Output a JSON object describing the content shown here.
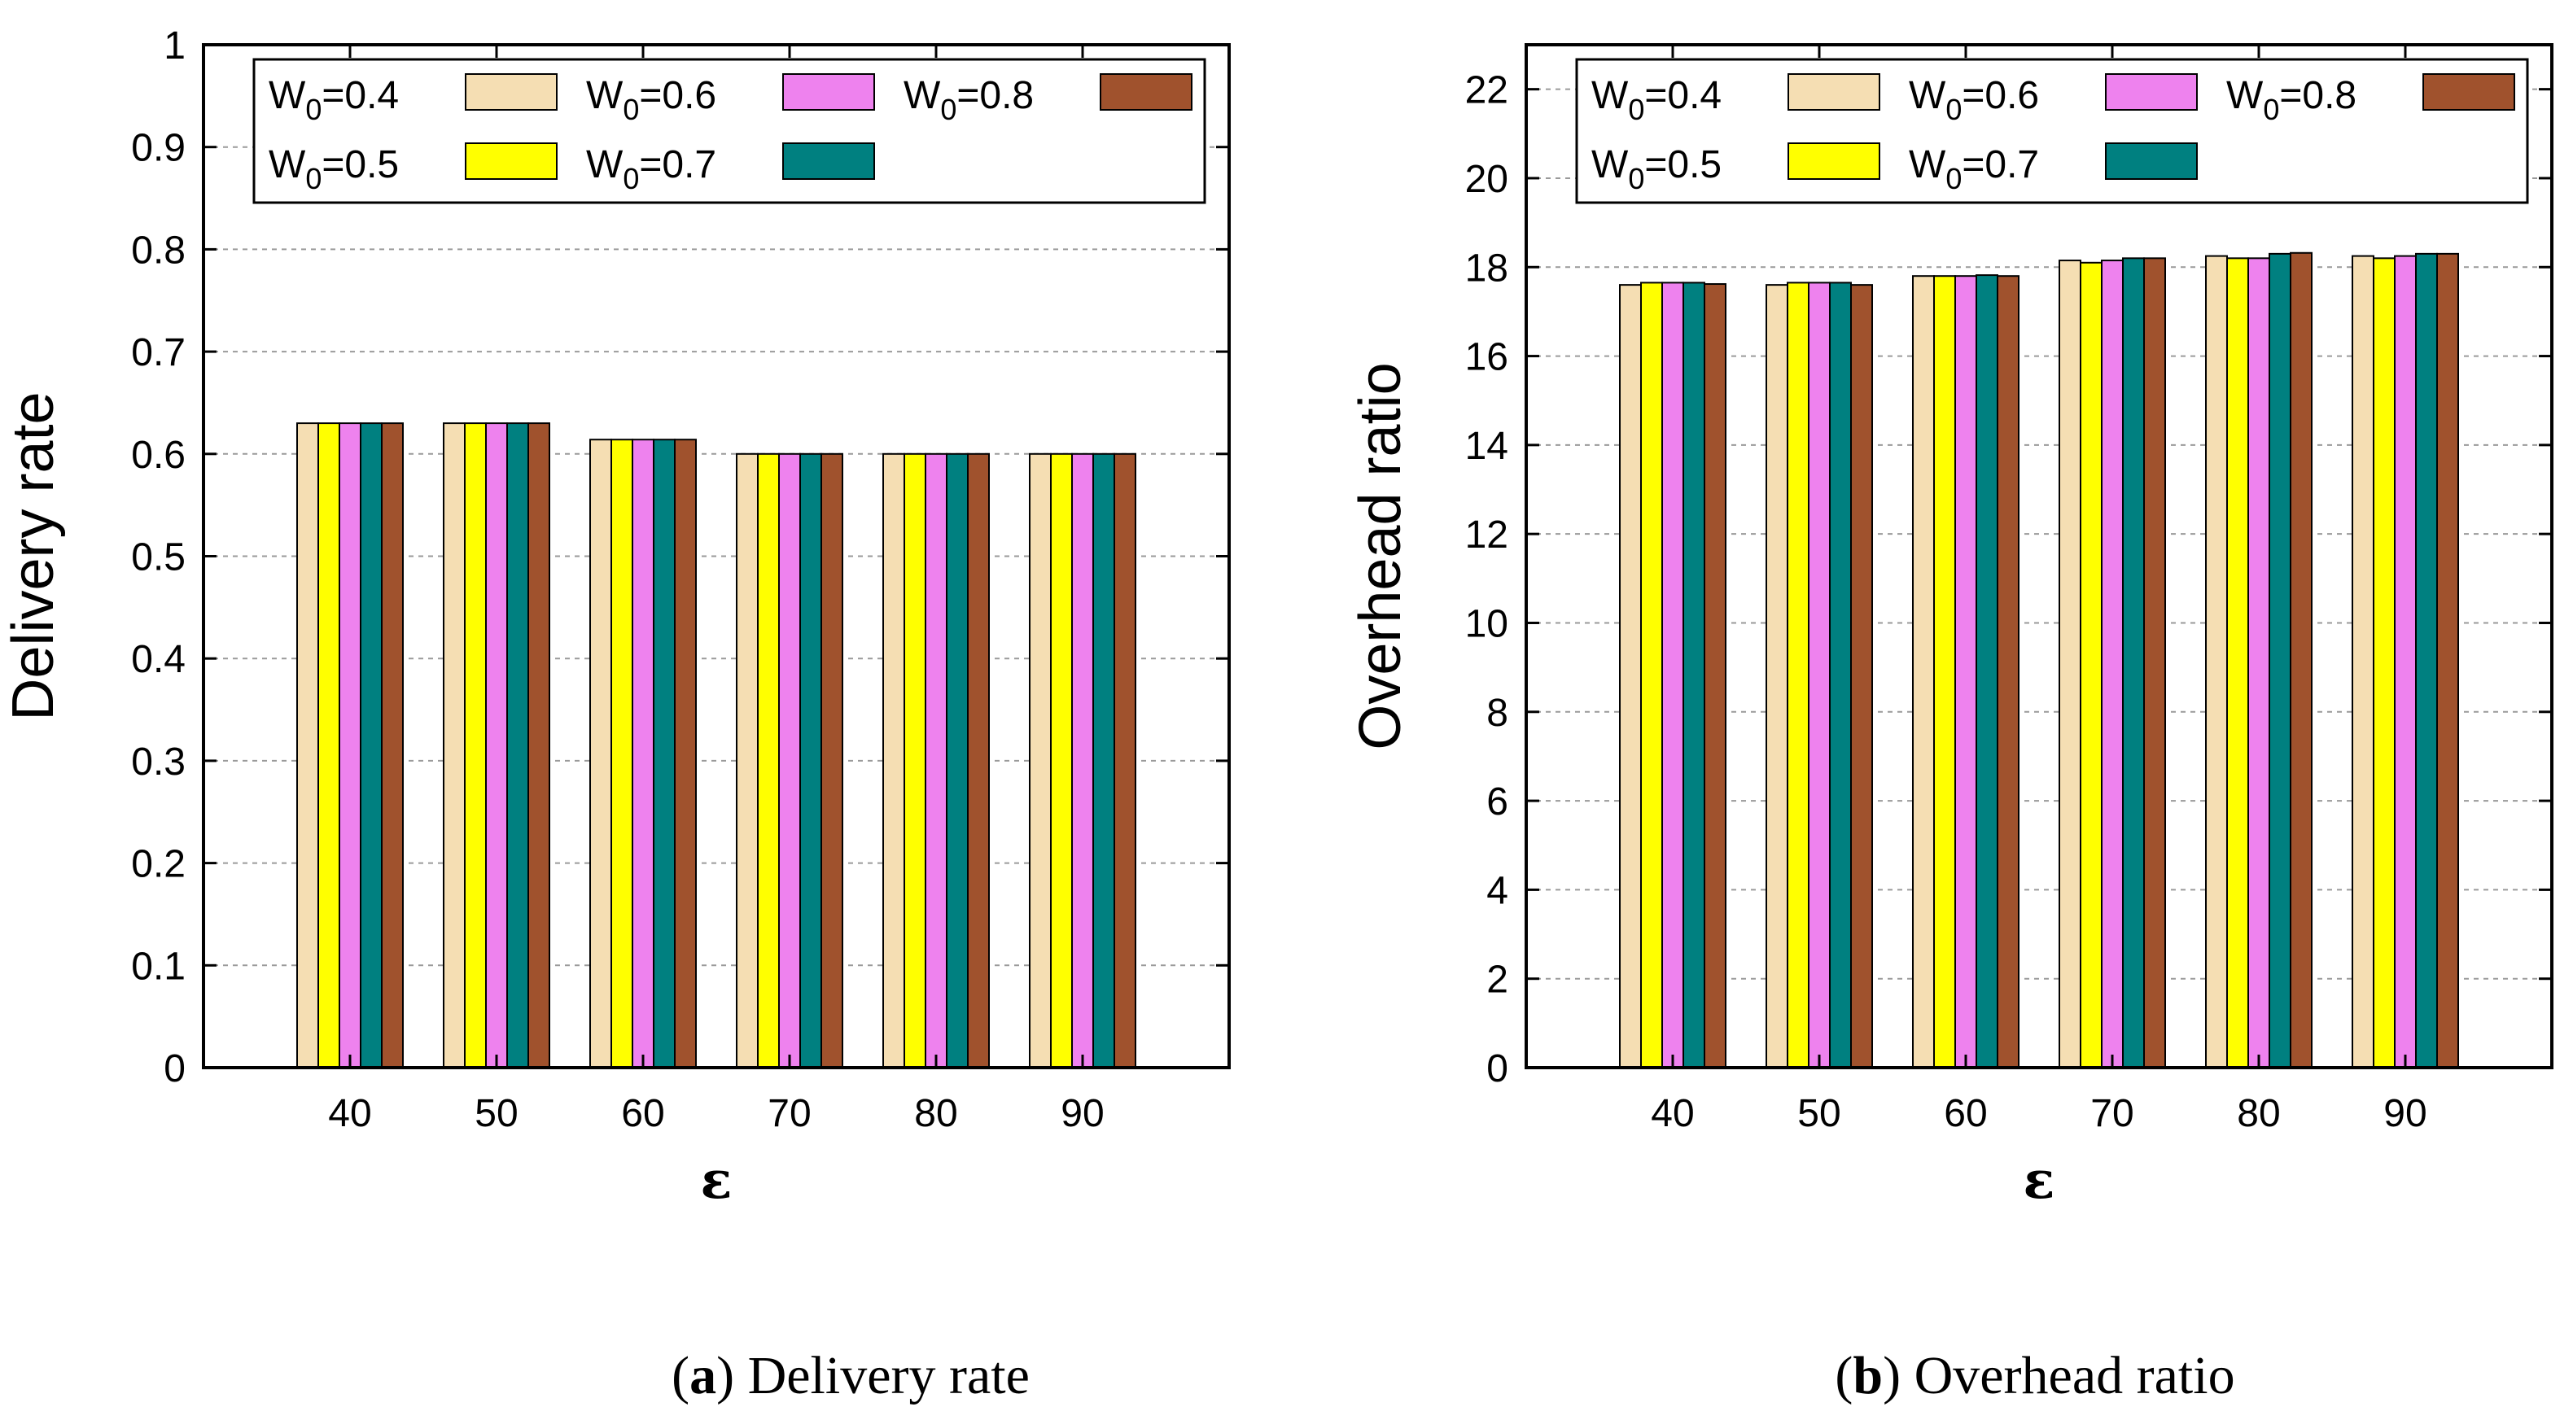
{
  "chart_data": [
    {
      "type": "bar",
      "panel": "a",
      "caption_label": "a",
      "caption_text": "Delivery rate",
      "ylabel": "Delivery rate",
      "xlabel": "ε",
      "ylim": [
        0,
        1
      ],
      "yticks": [
        "0",
        "0.1",
        "0.2",
        "0.3",
        "0.4",
        "0.5",
        "0.6",
        "0.7",
        "0.8",
        "0.9",
        "1"
      ],
      "categories": [
        "40",
        "50",
        "60",
        "70",
        "80",
        "90"
      ],
      "grid": true,
      "legend_position": "top-left",
      "series": [
        {
          "name": "W0=0.4",
          "values": [
            0.63,
            0.63,
            0.614,
            0.6,
            0.6,
            0.6
          ]
        },
        {
          "name": "W0=0.5",
          "values": [
            0.63,
            0.63,
            0.614,
            0.6,
            0.6,
            0.6
          ]
        },
        {
          "name": "W0=0.6",
          "values": [
            0.63,
            0.63,
            0.614,
            0.6,
            0.6,
            0.6
          ]
        },
        {
          "name": "W0=0.7",
          "values": [
            0.63,
            0.63,
            0.614,
            0.6,
            0.6,
            0.6
          ]
        },
        {
          "name": "W0=0.8",
          "values": [
            0.63,
            0.63,
            0.614,
            0.6,
            0.6,
            0.6
          ]
        }
      ]
    },
    {
      "type": "bar",
      "panel": "b",
      "caption_label": "b",
      "caption_text": "Overhead ratio",
      "ylabel": "Overhead ratio",
      "xlabel": "ε",
      "ylim": [
        0,
        23
      ],
      "yticks": [
        "0",
        "2",
        "4",
        "6",
        "8",
        "10",
        "12",
        "14",
        "16",
        "18",
        "20",
        "22"
      ],
      "categories": [
        "40",
        "50",
        "60",
        "70",
        "80",
        "90"
      ],
      "grid": true,
      "legend_position": "top-left",
      "series": [
        {
          "name": "W0=0.4",
          "values": [
            17.6,
            17.6,
            17.8,
            18.15,
            18.25,
            18.25
          ]
        },
        {
          "name": "W0=0.5",
          "values": [
            17.65,
            17.65,
            17.8,
            18.1,
            18.2,
            18.2
          ]
        },
        {
          "name": "W0=0.6",
          "values": [
            17.65,
            17.65,
            17.8,
            18.15,
            18.2,
            18.25
          ]
        },
        {
          "name": "W0=0.7",
          "values": [
            17.65,
            17.65,
            17.82,
            18.2,
            18.3,
            18.3
          ]
        },
        {
          "name": "W0=0.8",
          "values": [
            17.62,
            17.6,
            17.8,
            18.2,
            18.32,
            18.3
          ]
        }
      ]
    }
  ],
  "legend": {
    "series_labels": [
      {
        "prefix": "W",
        "sub": "0",
        "suffix": "=0.4"
      },
      {
        "prefix": "W",
        "sub": "0",
        "suffix": "=0.5"
      },
      {
        "prefix": "W",
        "sub": "0",
        "suffix": "=0.6"
      },
      {
        "prefix": "W",
        "sub": "0",
        "suffix": "=0.7"
      },
      {
        "prefix": "W",
        "sub": "0",
        "suffix": "=0.8"
      }
    ]
  },
  "colors": {
    "series": [
      "#f5deb3",
      "#ffff00",
      "#ee82ee",
      "#008080",
      "#a0522d"
    ]
  }
}
